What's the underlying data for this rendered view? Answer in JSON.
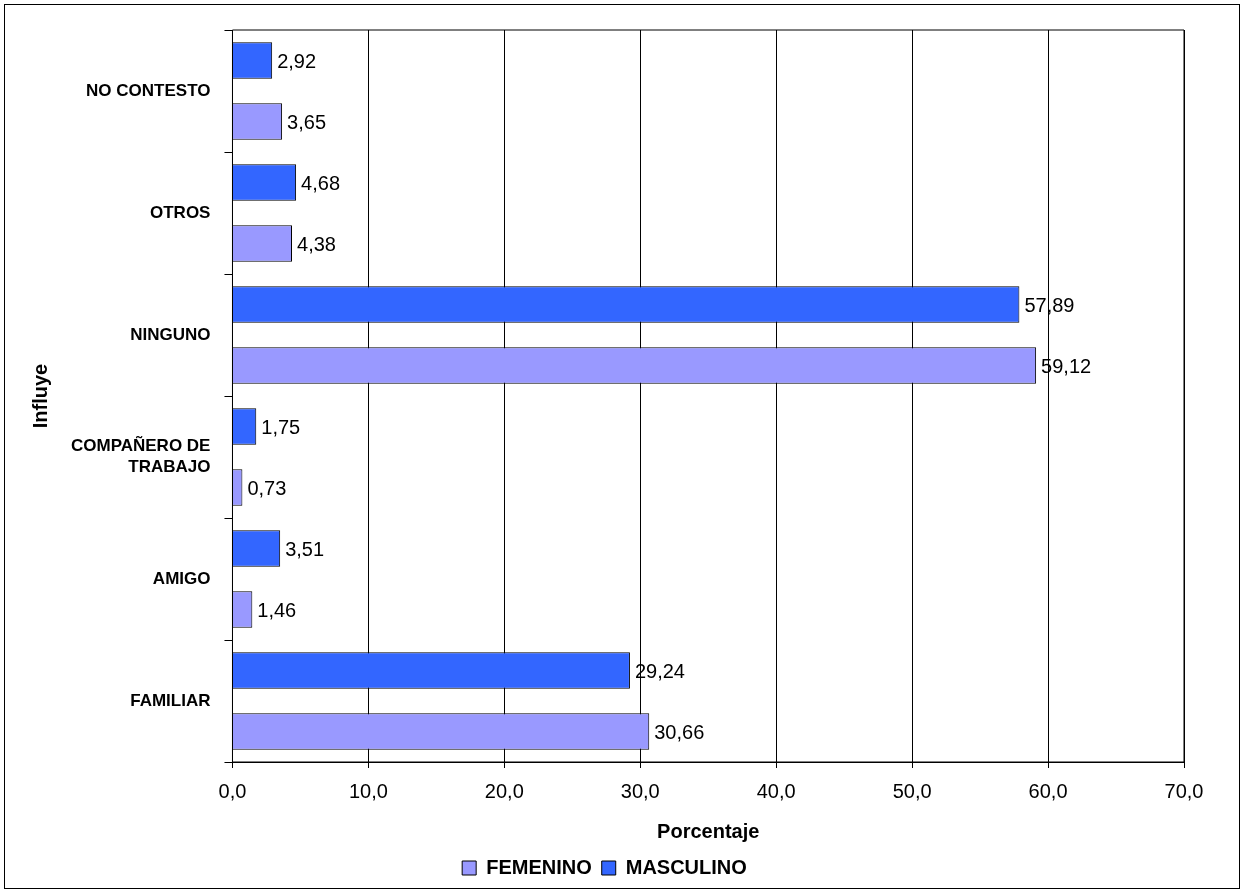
{
  "chart_data": {
    "type": "bar",
    "orientation": "horizontal",
    "xlabel": "Porcentaje",
    "ylabel": "Influye",
    "categories": [
      "NO CONTESTO",
      "OTROS",
      "NINGUNO",
      "COMPAÑERO DE TRABAJO",
      "AMIGO",
      "FAMILIAR"
    ],
    "series": [
      {
        "name": "FEMENINO",
        "color": "#9999ff",
        "values": [
          3.65,
          4.38,
          59.12,
          0.73,
          1.46,
          30.66
        ],
        "value_labels": [
          "3,65",
          "4,38",
          "59,12",
          "0,73",
          "1,46",
          "30,66"
        ]
      },
      {
        "name": "MASCULINO",
        "color": "#3366ff",
        "values": [
          2.92,
          4.68,
          57.89,
          1.75,
          3.51,
          29.24
        ],
        "value_labels": [
          "2,92",
          "4,68",
          "57,89",
          "1,75",
          "3,51",
          "29,24"
        ]
      }
    ],
    "xlim": [
      0,
      70
    ],
    "xticks": [
      {
        "value": 0,
        "label": "0,0"
      },
      {
        "value": 10,
        "label": "10,0"
      },
      {
        "value": 20,
        "label": "20,0"
      },
      {
        "value": 30,
        "label": "30,0"
      },
      {
        "value": 40,
        "label": "40,0"
      },
      {
        "value": 50,
        "label": "50,0"
      },
      {
        "value": 60,
        "label": "60,0"
      },
      {
        "value": 70,
        "label": "70,0"
      }
    ],
    "grid": "x",
    "legend": "bottom"
  }
}
